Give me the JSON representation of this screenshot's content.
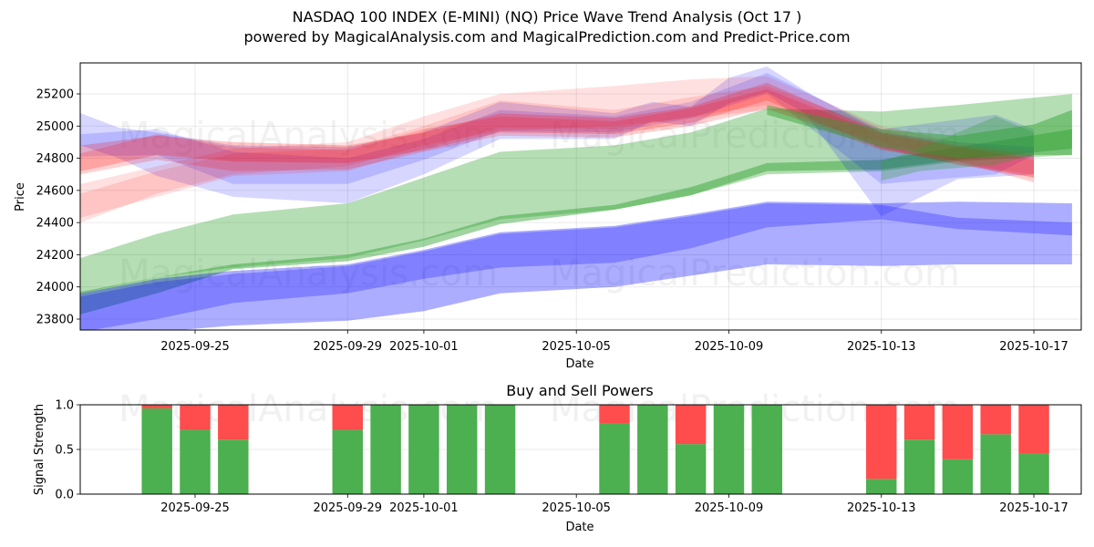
{
  "header": {
    "title": "NASDAQ 100 INDEX (E-MINI) (NQ) Price Wave Trend Analysis (Oct 17 )",
    "subtitle": "powered by MagicalAnalysis.com and MagicalPrediction.com and Predict-Price.com"
  },
  "watermarks": [
    "MagicalAnalysis.com",
    "MagicalPrediction.com"
  ],
  "colors": {
    "green_band": "#2ca02c",
    "blue_band": "#0000ff",
    "red_band": "#ff0000",
    "buy": "#4caf50",
    "sell": "#ff4c4c"
  },
  "chart_data": [
    {
      "type": "area",
      "title": "",
      "xlabel": "Date",
      "ylabel": "Price",
      "x_range": [
        "2025-09-21T12:00",
        "2025-10-18T12:00"
      ],
      "ylim": [
        23740,
        25410
      ],
      "yticks": [
        23800,
        24000,
        24200,
        24400,
        24600,
        24800,
        25000,
        25200
      ],
      "xticks": [
        "2025-09-25",
        "2025-09-29",
        "2025-10-01",
        "2025-10-05",
        "2025-10-09",
        "2025-10-13",
        "2025-10-17"
      ],
      "grid": true,
      "bands": [
        {
          "name": "long-term-green-wide",
          "color": "green",
          "opacity": 0.35,
          "x": [
            "2025-09-22",
            "2025-09-24",
            "2025-09-26",
            "2025-09-29",
            "2025-10-01",
            "2025-10-03",
            "2025-10-06",
            "2025-10-08",
            "2025-10-10",
            "2025-10-13",
            "2025-10-15",
            "2025-10-18"
          ],
          "upper": [
            24180,
            24330,
            24450,
            24520,
            24680,
            24840,
            24880,
            24960,
            25110,
            25090,
            25130,
            25200
          ],
          "lower": [
            23960,
            24060,
            24120,
            24180,
            24290,
            24420,
            24480,
            24570,
            24700,
            24720,
            24780,
            24820
          ]
        },
        {
          "name": "long-term-green-narrow",
          "color": "green",
          "opacity": 0.45,
          "x": [
            "2025-09-22",
            "2025-09-24",
            "2025-09-26",
            "2025-09-29",
            "2025-10-01",
            "2025-10-03",
            "2025-10-06",
            "2025-10-08",
            "2025-10-10",
            "2025-10-13",
            "2025-10-15",
            "2025-10-18"
          ],
          "upper": [
            23970,
            24060,
            24140,
            24200,
            24300,
            24440,
            24510,
            24620,
            24770,
            24790,
            24870,
            24980
          ],
          "lower": [
            23830,
            23960,
            24110,
            24160,
            24250,
            24390,
            24480,
            24570,
            24720,
            24730,
            24790,
            24860
          ]
        },
        {
          "name": "long-term-blue-wide",
          "color": "blue",
          "opacity": 0.32,
          "x": [
            "2025-09-22",
            "2025-09-24",
            "2025-09-26",
            "2025-09-29",
            "2025-10-01",
            "2025-10-03",
            "2025-10-06",
            "2025-10-08",
            "2025-10-10",
            "2025-10-13",
            "2025-10-15",
            "2025-10-18"
          ],
          "upper": [
            23960,
            24050,
            24100,
            24140,
            24230,
            24340,
            24380,
            24450,
            24530,
            24520,
            24530,
            24520
          ],
          "lower": [
            23700,
            23720,
            23760,
            23790,
            23850,
            23960,
            24000,
            24070,
            24140,
            24130,
            24140,
            24140
          ]
        },
        {
          "name": "long-term-blue-narrow",
          "color": "blue",
          "opacity": 0.25,
          "x": [
            "2025-09-22",
            "2025-09-24",
            "2025-09-26",
            "2025-09-29",
            "2025-10-01",
            "2025-10-03",
            "2025-10-06",
            "2025-10-08",
            "2025-10-10",
            "2025-10-13",
            "2025-10-15",
            "2025-10-18"
          ],
          "upper": [
            23940,
            24030,
            24080,
            24130,
            24220,
            24330,
            24370,
            24440,
            24520,
            24510,
            24430,
            24400
          ],
          "lower": [
            23720,
            23800,
            23900,
            23960,
            24050,
            24120,
            24150,
            24240,
            24370,
            24420,
            24360,
            24320
          ]
        },
        {
          "name": "short-term-blue-1",
          "color": "blue",
          "opacity": 0.16,
          "x": [
            "2025-09-22",
            "2025-09-23",
            "2025-09-24",
            "2025-09-26",
            "2025-09-29",
            "2025-10-01",
            "2025-10-03",
            "2025-10-06",
            "2025-10-07",
            "2025-10-08",
            "2025-10-09",
            "2025-10-10",
            "2025-10-11",
            "2025-10-13",
            "2025-10-15",
            "2025-10-17"
          ],
          "upper": [
            25080,
            24990,
            24960,
            24880,
            24870,
            24960,
            25150,
            25080,
            25150,
            25120,
            25300,
            25370,
            25220,
            24960,
            24900,
            24870
          ],
          "lower": [
            24880,
            24800,
            24690,
            24560,
            24520,
            24700,
            24920,
            24920,
            25030,
            25000,
            25140,
            25210,
            25080,
            24440,
            24670,
            24700
          ]
        },
        {
          "name": "short-term-blue-2",
          "color": "blue",
          "opacity": 0.14,
          "x": [
            "2025-09-22",
            "2025-09-24",
            "2025-09-26",
            "2025-09-29",
            "2025-10-01",
            "2025-10-03",
            "2025-10-06",
            "2025-10-08",
            "2025-10-10",
            "2025-10-13",
            "2025-10-16",
            "2025-10-17"
          ],
          "upper": [
            24950,
            24980,
            24840,
            24800,
            24920,
            25100,
            25060,
            25150,
            25330,
            24980,
            25070,
            24980
          ],
          "lower": [
            24810,
            24820,
            24640,
            24640,
            24790,
            24970,
            24960,
            25050,
            25200,
            24640,
            24700,
            24820
          ]
        },
        {
          "name": "short-term-red-1",
          "color": "red",
          "opacity": 0.22,
          "x": [
            "2025-09-22",
            "2025-09-24",
            "2025-09-26",
            "2025-09-29",
            "2025-10-01",
            "2025-10-03",
            "2025-10-06",
            "2025-10-08",
            "2025-10-10",
            "2025-10-13",
            "2025-10-15",
            "2025-10-17"
          ],
          "upper": [
            24880,
            24940,
            24900,
            24880,
            24960,
            25080,
            25050,
            25120,
            25270,
            24960,
            24880,
            24820
          ],
          "lower": [
            24720,
            24820,
            24780,
            24770,
            24850,
            24960,
            24950,
            25020,
            25160,
            24860,
            24760,
            24680
          ]
        },
        {
          "name": "short-term-red-2",
          "color": "red",
          "opacity": 0.18,
          "x": [
            "2025-09-22",
            "2025-09-24",
            "2025-09-26",
            "2025-09-29",
            "2025-10-01",
            "2025-10-03",
            "2025-10-06",
            "2025-10-08",
            "2025-10-10",
            "2025-10-13",
            "2025-10-15",
            "2025-10-17"
          ],
          "upper": [
            24830,
            24950,
            24870,
            24850,
            24980,
            25060,
            25030,
            25110,
            25230,
            24950,
            24870,
            24790
          ],
          "lower": [
            24700,
            24790,
            24720,
            24730,
            24840,
            24940,
            24930,
            25000,
            25110,
            24850,
            24780,
            24650
          ]
        },
        {
          "name": "short-term-red-3",
          "color": "red",
          "opacity": 0.12,
          "x": [
            "2025-09-22",
            "2025-09-24",
            "2025-09-26",
            "2025-09-29",
            "2025-10-01",
            "2025-10-03",
            "2025-10-06",
            "2025-10-08",
            "2025-10-10",
            "2025-10-13",
            "2025-10-15",
            "2025-10-17"
          ],
          "upper": [
            24640,
            24750,
            24860,
            24900,
            25060,
            25200,
            25250,
            25290,
            25310,
            25000,
            24900,
            24840
          ],
          "lower": [
            24400,
            24580,
            24700,
            24750,
            24880,
            24970,
            25000,
            25050,
            25100,
            24900,
            24780,
            24680
          ]
        },
        {
          "name": "short-term-red-4",
          "color": "red",
          "opacity": 0.12,
          "x": [
            "2025-09-22",
            "2025-09-24",
            "2025-09-26",
            "2025-09-29",
            "2025-10-01",
            "2025-10-03",
            "2025-10-06",
            "2025-10-08",
            "2025-10-10",
            "2025-10-13",
            "2025-10-15",
            "2025-10-17"
          ],
          "upper": [
            24580,
            24720,
            24830,
            24860,
            25000,
            25160,
            25100,
            25180,
            25250,
            24980,
            24870,
            24800
          ],
          "lower": [
            24430,
            24560,
            24690,
            24720,
            24860,
            24990,
            24980,
            25060,
            25130,
            24870,
            24760,
            24700
          ]
        },
        {
          "name": "short-term-green-1",
          "color": "green",
          "opacity": 0.45,
          "x": [
            "2025-10-10",
            "2025-10-13",
            "2025-10-15",
            "2025-10-17",
            "2025-10-18"
          ],
          "upper": [
            25130,
            24980,
            24940,
            25010,
            25100
          ],
          "lower": [
            25070,
            24870,
            24800,
            24820,
            24820
          ]
        },
        {
          "name": "short-term-green-2",
          "color": "green",
          "opacity": 0.3,
          "x": [
            "2025-10-13",
            "2025-10-14",
            "2025-10-16",
            "2025-10-17"
          ],
          "upper": [
            24780,
            24860,
            25060,
            24960
          ],
          "lower": [
            24660,
            24720,
            24760,
            24820
          ]
        }
      ]
    },
    {
      "type": "bar",
      "title": "Buy and Sell Powers",
      "xlabel": "Date",
      "ylabel": "Signal Strength",
      "ylim": [
        0,
        1.0
      ],
      "yticks": [
        "0.0",
        "0.5",
        "1.0"
      ],
      "xticks": [
        "2025-09-25",
        "2025-09-29",
        "2025-10-01",
        "2025-10-05",
        "2025-10-09",
        "2025-10-13",
        "2025-10-17"
      ],
      "grid": true,
      "stacked": true,
      "categories": [
        "2025-09-24",
        "2025-09-25",
        "2025-09-26",
        "2025-09-29",
        "2025-09-30",
        "2025-10-01",
        "2025-10-02",
        "2025-10-03",
        "2025-10-06",
        "2025-10-07",
        "2025-10-08",
        "2025-10-09",
        "2025-10-10",
        "2025-10-13",
        "2025-10-14",
        "2025-10-15",
        "2025-10-16",
        "2025-10-17"
      ],
      "series": [
        {
          "name": "Buy",
          "color": "#4caf50",
          "values": [
            0.96,
            0.72,
            0.61,
            0.72,
            1.0,
            1.0,
            1.0,
            1.0,
            0.79,
            1.0,
            0.56,
            1.0,
            1.0,
            0.17,
            0.61,
            0.39,
            0.67,
            0.45
          ]
        },
        {
          "name": "Sell",
          "color": "#ff4c4c",
          "values": [
            0.04,
            0.28,
            0.39,
            0.28,
            0.0,
            0.0,
            0.0,
            0.0,
            0.21,
            0.0,
            0.44,
            0.0,
            0.0,
            0.83,
            0.39,
            0.61,
            0.33,
            0.55
          ]
        }
      ]
    }
  ]
}
